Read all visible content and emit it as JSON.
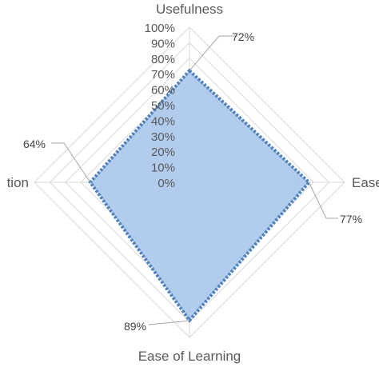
{
  "chart_data": {
    "type": "radar",
    "axes": [
      "Usefulness",
      "Ease of Use",
      "Ease of Learning",
      "Satisfaction"
    ],
    "axis_labels_visible": [
      "Usefulness",
      "Ease",
      "Ease of Learning",
      "tion"
    ],
    "series": [
      {
        "values": [
          72,
          77,
          89,
          64
        ]
      }
    ],
    "data_labels": [
      "72%",
      "77%",
      "89%",
      "64%"
    ],
    "ticks": [
      "0%",
      "10%",
      "20%",
      "30%",
      "40%",
      "50%",
      "60%",
      "70%",
      "80%",
      "90%",
      "100%"
    ],
    "rmin": 0,
    "rmax": 100,
    "fill_color": "#a9c6ea",
    "line_color": "#4f81bd",
    "grid_color": "#d9d9d9",
    "grid": true
  }
}
